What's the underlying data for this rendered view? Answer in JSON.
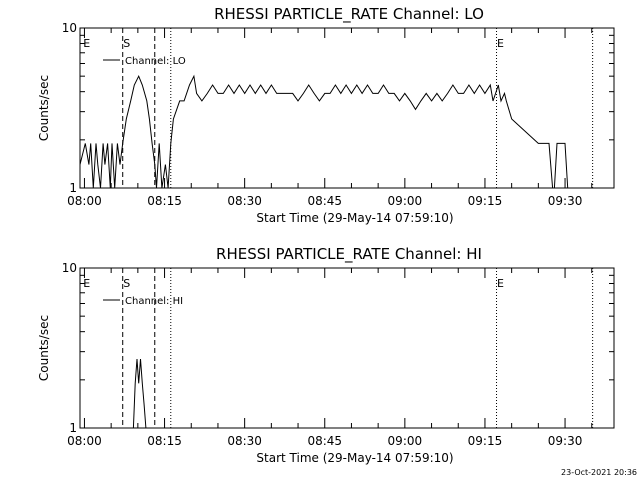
{
  "chart_data": [
    {
      "type": "line",
      "title": "RHESSI PARTICLE_RATE Channel: LO",
      "xlabel": "Start Time (29-May-14 07:59:10)",
      "ylabel": "Counts/sec",
      "y_scale": "log",
      "ylim": [
        1,
        10
      ],
      "xlim": [
        "07:59:10",
        "09:39:10"
      ],
      "y_ticks": [
        "1",
        "10"
      ],
      "x_ticks": [
        "08:00",
        "08:15",
        "08:30",
        "08:45",
        "09:00",
        "09:15",
        "09:30"
      ],
      "legend": "top-left",
      "grid": false,
      "series": [
        {
          "name": "Channel: LO",
          "x": [
            "07:59:10",
            "08:00:10",
            "08:00:50",
            "08:01:10",
            "08:01:40",
            "08:02:10",
            "08:02:30",
            "08:03:00",
            "08:03:30",
            "08:03:50",
            "08:04:20",
            "08:04:50",
            "08:05:10",
            "08:05:40",
            "08:06:10",
            "08:06:40",
            "08:07:10",
            "08:07:50",
            "08:08:40",
            "08:09:20",
            "08:10:10",
            "08:10:50",
            "08:11:40",
            "08:12:10",
            "08:12:40",
            "08:13:10",
            "08:13:30",
            "08:14:00",
            "08:14:30",
            "08:15:10",
            "08:15:40",
            "08:16:10",
            "08:16:40",
            "08:17:50",
            "08:18:40",
            "08:19:40",
            "08:20:30",
            "08:21:00",
            "08:22:00",
            "08:23:00",
            "08:24:00",
            "08:25:00",
            "08:26:00",
            "08:27:00",
            "08:28:00",
            "08:29:00",
            "08:30:00",
            "08:31:00",
            "08:32:00",
            "08:33:00",
            "08:34:00",
            "08:35:00",
            "08:36:00",
            "08:37:00",
            "08:38:00",
            "08:39:00",
            "08:40:00",
            "08:41:00",
            "08:42:00",
            "08:43:00",
            "08:44:00",
            "08:45:00",
            "08:46:00",
            "08:47:00",
            "08:48:00",
            "08:49:00",
            "08:50:00",
            "08:51:00",
            "08:52:00",
            "08:53:00",
            "08:54:00",
            "08:55:00",
            "08:56:00",
            "08:57:00",
            "08:58:00",
            "08:59:00",
            "09:00:00",
            "09:01:00",
            "09:02:00",
            "09:03:00",
            "09:04:00",
            "09:05:00",
            "09:06:00",
            "09:07:00",
            "09:08:00",
            "09:09:00",
            "09:10:00",
            "09:11:00",
            "09:12:00",
            "09:13:00",
            "09:14:00",
            "09:15:00",
            "09:16:00",
            "09:16:30",
            "09:17:00",
            "09:17:30",
            "09:18:00",
            "09:18:40",
            "09:19:00",
            "09:20:00",
            "09:25:00",
            "09:26:00",
            "09:27:00",
            "09:27:40",
            "09:28:00",
            "09:28:30",
            "09:29:30",
            "09:30:00",
            "09:30:30",
            "09:31:00",
            "09:31:20"
          ],
          "values": [
            1.4,
            1.9,
            1.4,
            1.9,
            1.0,
            1.9,
            1.4,
            1.0,
            1.9,
            1.4,
            1.9,
            1.0,
            1.9,
            1.0,
            1.9,
            1.4,
            1.9,
            2.7,
            3.5,
            4.4,
            5.0,
            4.4,
            3.5,
            2.7,
            1.9,
            1.4,
            1.0,
            1.9,
            1.0,
            1.4,
            1.0,
            1.9,
            2.7,
            3.5,
            3.5,
            4.4,
            5.0,
            3.9,
            3.5,
            3.9,
            4.4,
            3.9,
            3.9,
            4.4,
            3.9,
            4.4,
            3.9,
            4.4,
            3.9,
            4.4,
            3.9,
            4.4,
            3.9,
            3.9,
            3.9,
            3.9,
            3.5,
            3.9,
            4.4,
            3.9,
            3.5,
            3.9,
            3.9,
            4.4,
            3.9,
            4.4,
            3.9,
            4.4,
            3.9,
            4.4,
            3.9,
            3.9,
            4.4,
            3.9,
            3.9,
            3.5,
            3.9,
            3.5,
            3.1,
            3.5,
            3.9,
            3.5,
            3.9,
            3.5,
            3.9,
            4.4,
            3.9,
            3.9,
            4.4,
            3.9,
            4.4,
            3.9,
            4.4,
            3.5,
            3.9,
            4.4,
            3.5,
            3.9,
            3.5,
            2.7,
            1.9,
            1.9,
            1.9,
            1.0,
            1.0,
            1.9,
            1.9,
            1.9,
            1.0,
            1.0,
            1.0
          ]
        }
      ],
      "markers": [
        {
          "label": "E",
          "x": "07:59:40",
          "style": "none"
        },
        {
          "label": "S",
          "x": "08:07:10",
          "style": "dashed"
        },
        {
          "label": "",
          "x": "08:13:10",
          "style": "dashed"
        },
        {
          "label": "",
          "x": "08:16:10",
          "style": "dotted"
        },
        {
          "label": "E",
          "x": "09:17:10",
          "style": "dotted"
        },
        {
          "label": "",
          "x": "09:35:10",
          "style": "dotted"
        }
      ]
    },
    {
      "type": "line",
      "title": "RHESSI PARTICLE_RATE Channel: HI",
      "xlabel": "Start Time (29-May-14 07:59:10)",
      "ylabel": "Counts/sec",
      "y_scale": "log",
      "ylim": [
        1,
        10
      ],
      "xlim": [
        "07:59:10",
        "09:39:10"
      ],
      "y_ticks": [
        "1",
        "10"
      ],
      "x_ticks": [
        "08:00",
        "08:15",
        "08:30",
        "08:45",
        "09:00",
        "09:15",
        "09:30"
      ],
      "legend": "top-left",
      "grid": false,
      "series": [
        {
          "name": "Channel: HI",
          "x": [
            "08:09:10",
            "08:09:30",
            "08:09:50",
            "08:10:10",
            "08:10:30",
            "08:10:50",
            "08:11:10",
            "08:11:30"
          ],
          "values": [
            1.0,
            1.9,
            2.7,
            1.9,
            2.7,
            1.9,
            1.4,
            1.0
          ]
        }
      ],
      "markers": [
        {
          "label": "E",
          "x": "07:59:40",
          "style": "none"
        },
        {
          "label": "S",
          "x": "08:07:10",
          "style": "dashed"
        },
        {
          "label": "",
          "x": "08:13:10",
          "style": "dashed"
        },
        {
          "label": "",
          "x": "08:16:10",
          "style": "dotted"
        },
        {
          "label": "E",
          "x": "09:17:10",
          "style": "dotted"
        },
        {
          "label": "",
          "x": "09:35:10",
          "style": "dotted"
        }
      ]
    }
  ],
  "footer": {
    "timestamp": "23-Oct-2021 20:36"
  }
}
